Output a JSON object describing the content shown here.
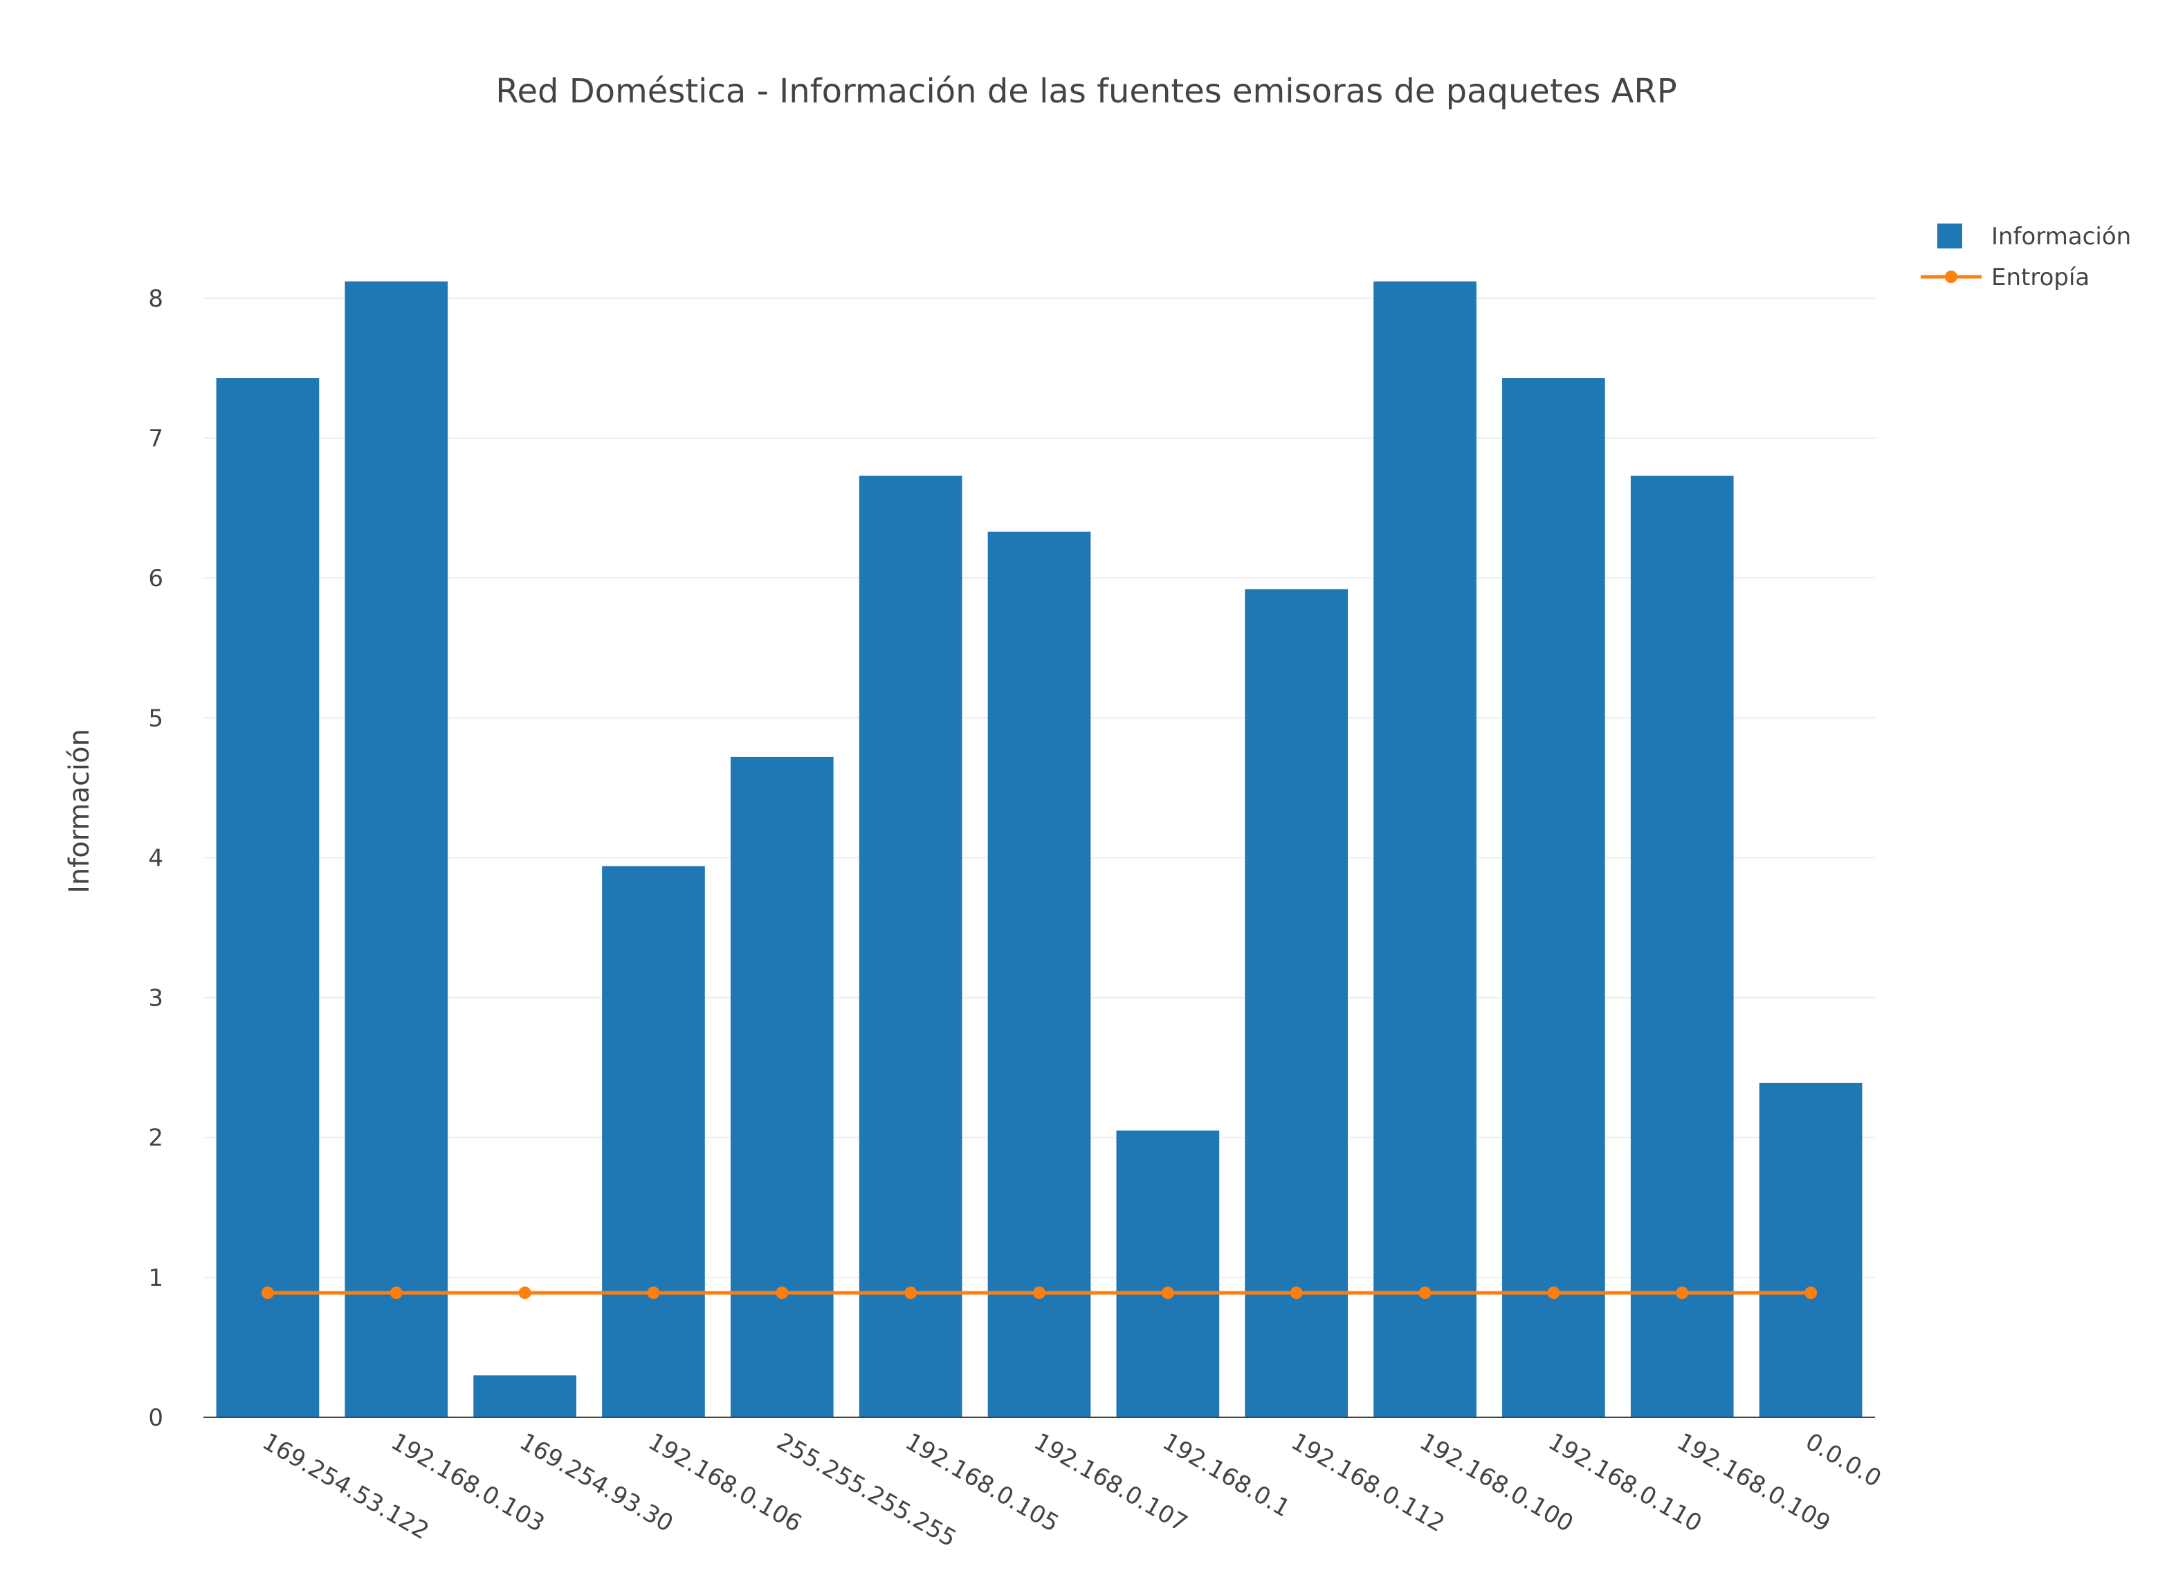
{
  "chart_data": {
    "type": "bar",
    "title": "Red Doméstica - Información de las fuentes emisoras de paquetes ARP",
    "xlabel": "",
    "ylabel": "Información",
    "ylim": [
      0,
      8.4
    ],
    "yticks": [
      0,
      1,
      2,
      3,
      4,
      5,
      6,
      7,
      8
    ],
    "grid": true,
    "legend_position": "top-right",
    "categories": [
      "169.254.53.122",
      "192.168.0.103",
      "169.254.93.30",
      "192.168.0.106",
      "255.255.255.255",
      "192.168.0.105",
      "192.168.0.107",
      "192.168.0.1",
      "192.168.0.112",
      "192.168.0.100",
      "192.168.0.110",
      "192.168.0.109",
      "0.0.0.0"
    ],
    "series": [
      {
        "name": "Información",
        "type": "bar",
        "color": "#1f77b4",
        "values": [
          7.43,
          8.12,
          0.3,
          3.94,
          4.72,
          6.73,
          6.33,
          2.05,
          5.92,
          8.12,
          7.43,
          6.73,
          2.39
        ]
      },
      {
        "name": "Entropía",
        "type": "line",
        "color": "#ff7f0e",
        "values": [
          0.89,
          0.89,
          0.89,
          0.89,
          0.89,
          0.89,
          0.89,
          0.89,
          0.89,
          0.89,
          0.89,
          0.89,
          0.89
        ]
      }
    ]
  }
}
